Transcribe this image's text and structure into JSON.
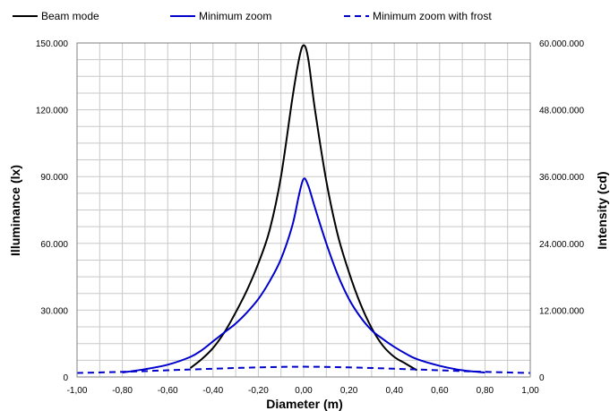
{
  "chart_data": {
    "type": "line",
    "title": "",
    "xlabel": "Diameter (m)",
    "ylabel": "Illuminance  (lx)",
    "y2label": "Intensity  (cd)",
    "xlim": [
      -1.0,
      1.0
    ],
    "ylim": [
      0,
      150000
    ],
    "y2lim": [
      0,
      60000000
    ],
    "grid": true,
    "legend_position": "top",
    "x_ticks": [
      -1.0,
      -0.8,
      -0.6,
      -0.4,
      -0.2,
      0.0,
      0.2,
      0.4,
      0.6,
      0.8,
      1.0
    ],
    "x_tick_labels": [
      "-1,00",
      "-0,80",
      "-0,60",
      "-0,40",
      "-0,20",
      "0,00",
      "0,20",
      "0,40",
      "0,60",
      "0,80",
      "1,00"
    ],
    "y_ticks": [
      0,
      30000,
      60000,
      90000,
      120000,
      150000
    ],
    "y_tick_labels": [
      "0",
      "30.000",
      "60.000",
      "90.000",
      "120.000",
      "150.000"
    ],
    "y2_ticks": [
      0,
      12000000,
      24000000,
      36000000,
      48000000,
      60000000
    ],
    "y2_tick_labels": [
      "0",
      "12.000.000",
      "24.000.000",
      "36.000.000",
      "48.000.000",
      "60.000.000"
    ],
    "series": [
      {
        "name": "Beam mode",
        "color": "#000000",
        "style": "solid",
        "x": [
          -0.5,
          -0.45,
          -0.4,
          -0.35,
          -0.3,
          -0.25,
          -0.2,
          -0.15,
          -0.1,
          -0.05,
          -0.02,
          0.0,
          0.02,
          0.05,
          0.1,
          0.15,
          0.2,
          0.25,
          0.3,
          0.35,
          0.4,
          0.45,
          0.5
        ],
        "y": [
          4000,
          8000,
          13000,
          20000,
          29000,
          39000,
          51000,
          66000,
          90000,
          125000,
          143000,
          149000,
          143000,
          120000,
          88000,
          64000,
          47000,
          33000,
          22000,
          14000,
          9000,
          6000,
          3000
        ]
      },
      {
        "name": "Minimum zoom",
        "color": "#0000cc",
        "style": "solid",
        "x": [
          -0.8,
          -0.7,
          -0.6,
          -0.5,
          -0.45,
          -0.4,
          -0.35,
          -0.3,
          -0.25,
          -0.2,
          -0.15,
          -0.1,
          -0.05,
          -0.02,
          0.0,
          0.02,
          0.05,
          0.1,
          0.15,
          0.2,
          0.25,
          0.3,
          0.35,
          0.4,
          0.45,
          0.5,
          0.6,
          0.7,
          0.8
        ],
        "y": [
          2000,
          3500,
          5500,
          9000,
          12000,
          16000,
          20000,
          24000,
          29000,
          35000,
          43000,
          53000,
          68000,
          82000,
          89000,
          86000,
          76000,
          60000,
          46000,
          35000,
          27000,
          21000,
          17000,
          13500,
          10500,
          8000,
          5000,
          3000,
          2000
        ]
      },
      {
        "name": "Minimum zoom with frost",
        "color": "#0000cc",
        "style": "dashed",
        "x": [
          -1.0,
          -0.8,
          -0.6,
          -0.4,
          -0.2,
          0.0,
          0.2,
          0.4,
          0.6,
          0.8,
          1.0
        ],
        "y": [
          1800,
          2300,
          3000,
          3700,
          4300,
          4600,
          4300,
          3700,
          3000,
          2300,
          1800
        ]
      }
    ]
  }
}
